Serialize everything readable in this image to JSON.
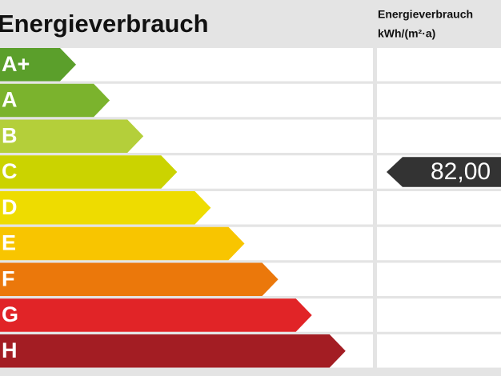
{
  "header": {
    "title": "Energieverbrauch",
    "column_title": "Energieverbrauch",
    "column_unit": "kWh/(m²·a)"
  },
  "classes": [
    {
      "label": "A+",
      "color": "#5b9f2b"
    },
    {
      "label": "A",
      "color": "#7bb32d"
    },
    {
      "label": "B",
      "color": "#b4cf3a"
    },
    {
      "label": "C",
      "color": "#cbd300",
      "value": "82,00"
    },
    {
      "label": "D",
      "color": "#eedc00"
    },
    {
      "label": "E",
      "color": "#f8c500"
    },
    {
      "label": "F",
      "color": "#eb780b"
    },
    {
      "label": "G",
      "color": "#e12427"
    },
    {
      "label": "H",
      "color": "#a31d23"
    }
  ],
  "value_color": "#333333"
}
